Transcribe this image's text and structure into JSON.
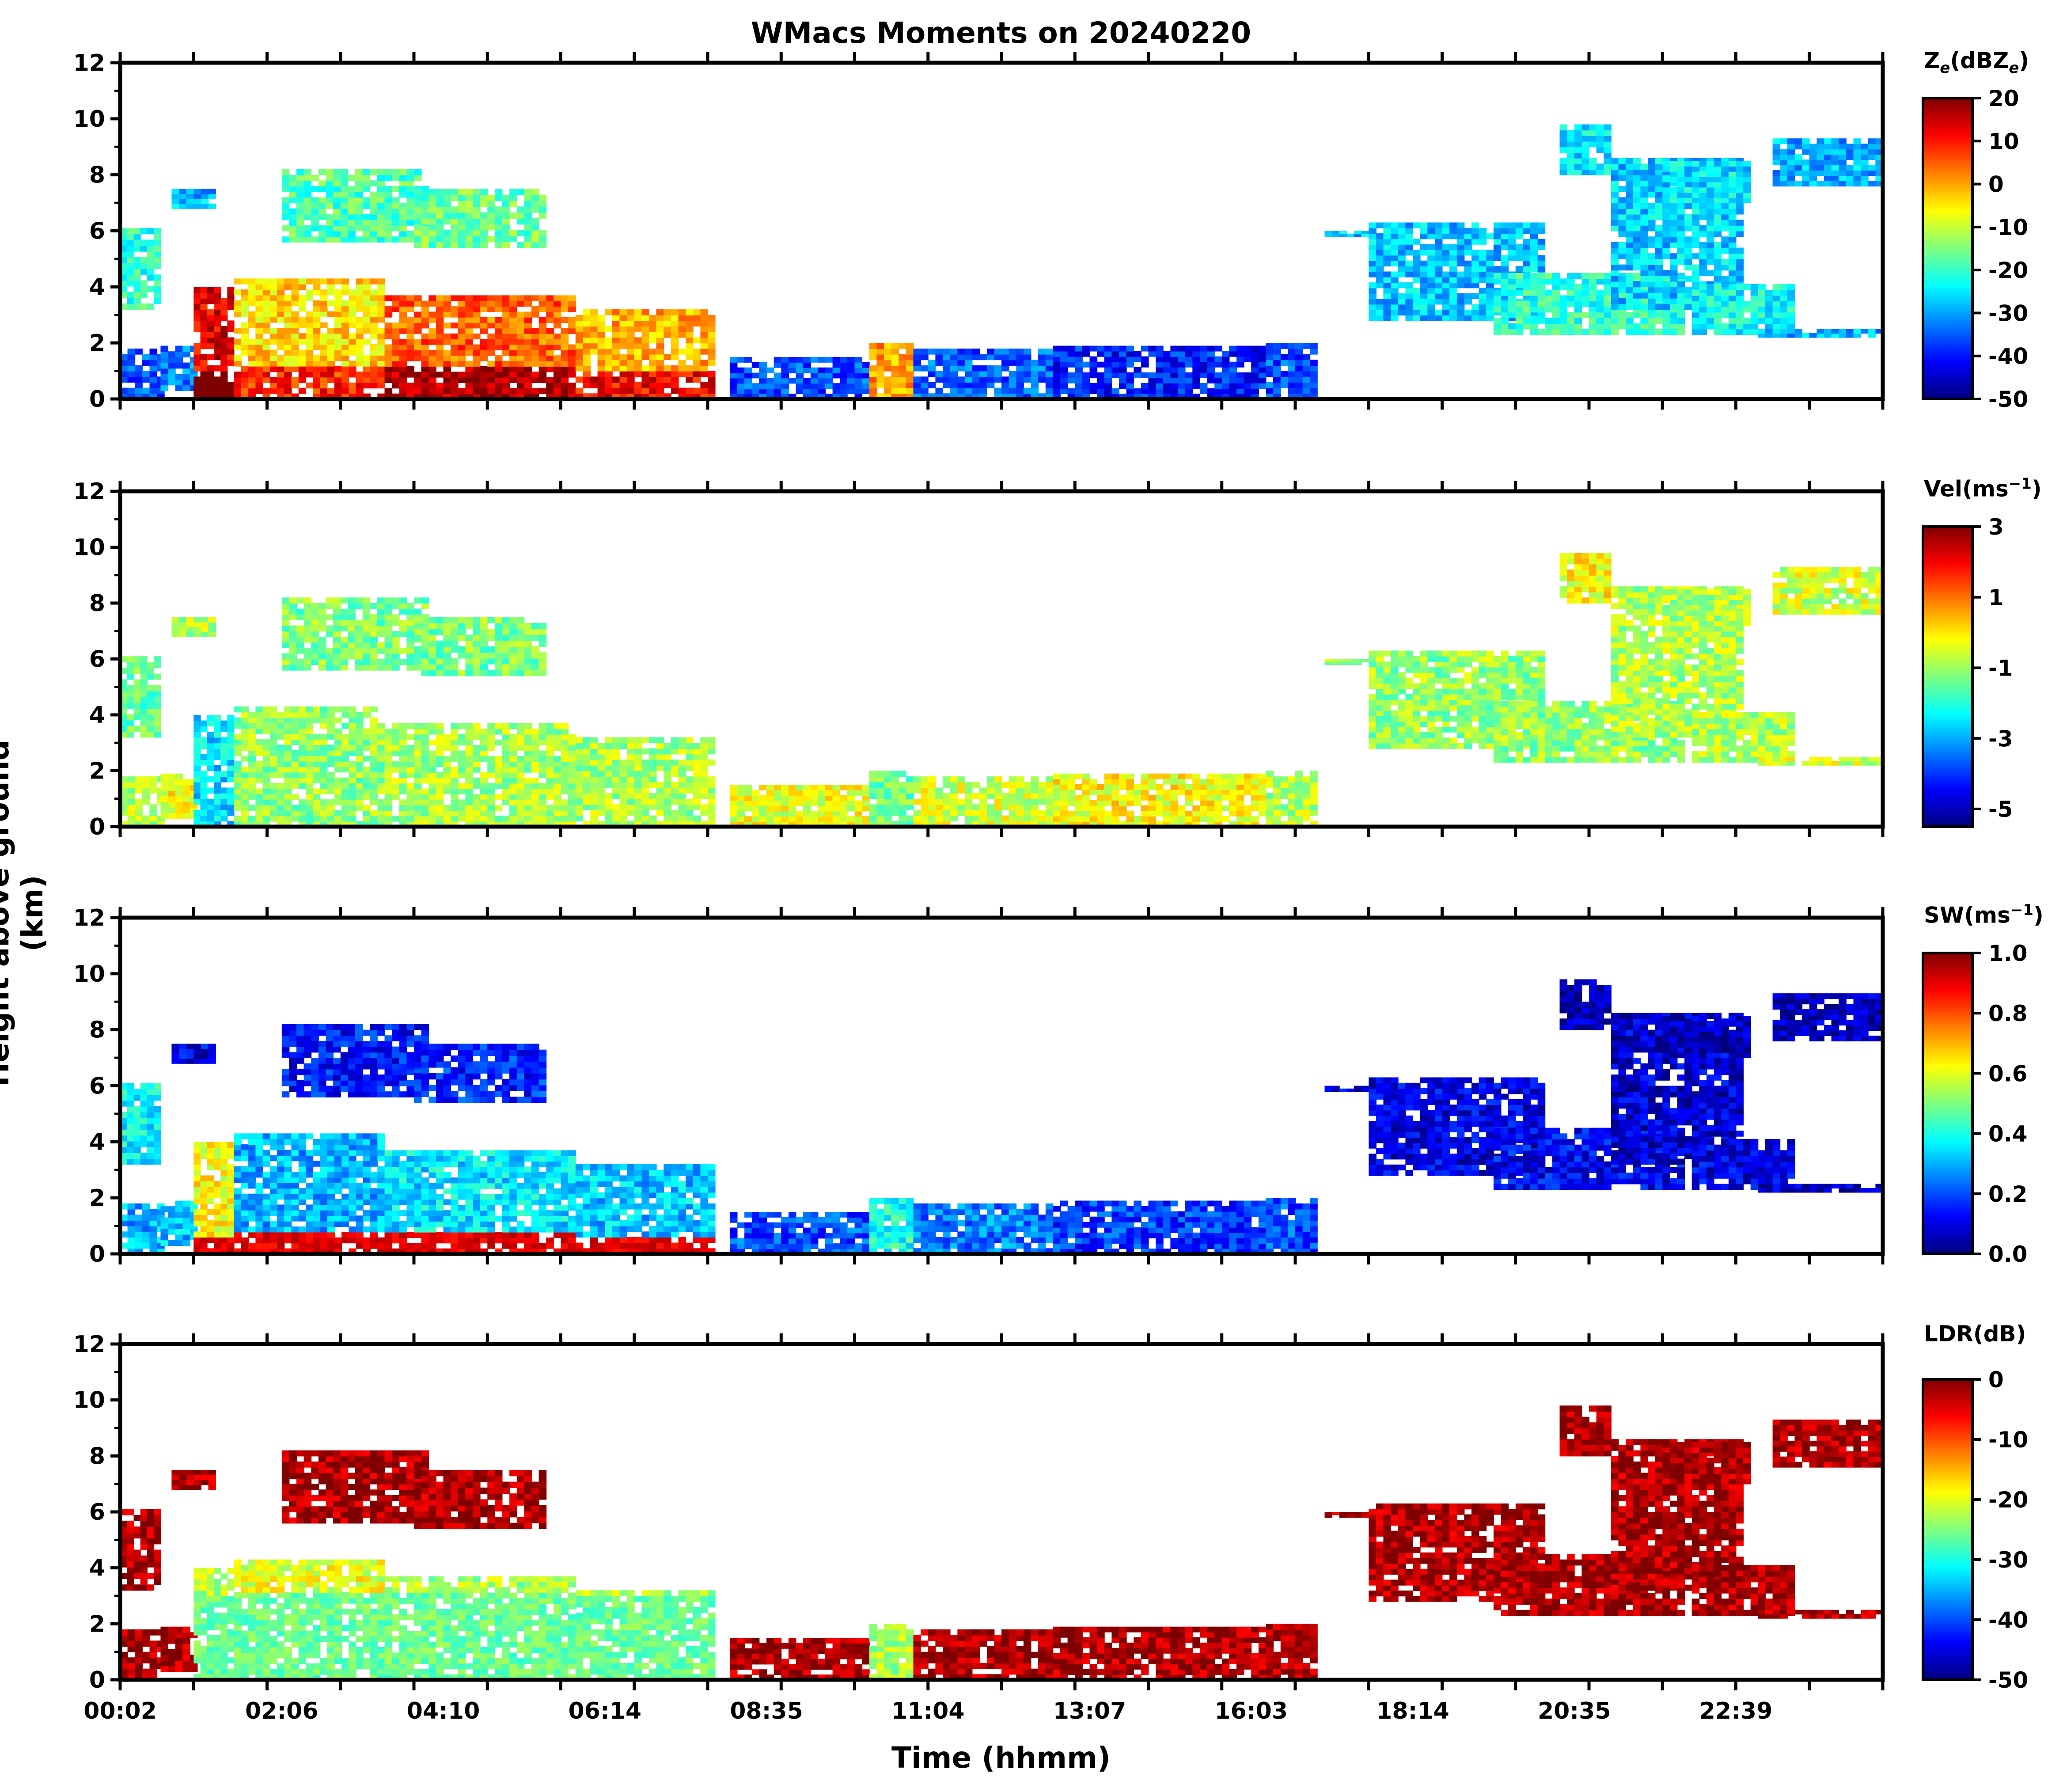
{
  "title": "WMacs Moments on 20240220",
  "xlabel": "Time (hhmm)",
  "ylabel": "Height above ground (km)",
  "colors": {
    "jet": [
      "#00007f",
      "#0000ff",
      "#007fff",
      "#00ffff",
      "#7fff7f",
      "#ffff00",
      "#ff7f00",
      "#ff0000",
      "#7f0000"
    ]
  },
  "chart_data": [
    {
      "type": "heatmap",
      "name": "reflectivity",
      "colorbar_label": "Z_e (dBZ_e)",
      "clim": [
        -50,
        20
      ],
      "colorbar_ticks": [
        "20",
        "10",
        "0",
        "-10",
        "-20",
        "-30",
        "-40",
        "-50"
      ],
      "ylim": [
        0,
        12
      ],
      "yticks": [
        "0",
        "2",
        "4",
        "6",
        "8",
        "10",
        "12"
      ],
      "xticks": [
        "00:02",
        "02:06",
        "04:10",
        "06:14",
        "08:35",
        "11:04",
        "13:07",
        "16:03",
        "18:14",
        "20:35",
        "22:39"
      ],
      "echo_layers": [
        {
          "t": [
            0.0,
            1.4
          ],
          "z": [
            0.0,
            2.0
          ],
          "value": -35
        },
        {
          "t": [
            1.4,
            8.3
          ],
          "z": [
            0.0,
            4.2
          ],
          "value": 5
        },
        {
          "t": [
            0.0,
            0.7
          ],
          "z": [
            3.2,
            6.1
          ],
          "value": -15
        },
        {
          "t": [
            2.2,
            5.8
          ],
          "z": [
            5.3,
            8.3
          ],
          "value": -18
        },
        {
          "t": [
            8.3,
            15.6
          ],
          "z": [
            0.0,
            2.0
          ],
          "value": -38
        },
        {
          "t": [
            17.1,
            21.4
          ],
          "z": [
            2.2,
            6.3
          ],
          "value": -22
        },
        {
          "t": [
            19.6,
            22.2
          ],
          "z": [
            3.0,
            9.8
          ],
          "value": -25
        },
        {
          "t": [
            22.3,
            24.0
          ],
          "z": [
            7.5,
            9.3
          ],
          "value": -28
        }
      ]
    },
    {
      "type": "heatmap",
      "name": "velocity",
      "colorbar_label": "Vel (ms^-1)",
      "clim": [
        -5.5,
        3
      ],
      "colorbar_ticks": [
        "3",
        "1",
        "-1",
        "-3",
        "-5"
      ],
      "ylim": [
        0,
        12
      ],
      "yticks": [
        "0",
        "2",
        "4",
        "6",
        "8",
        "10",
        "12"
      ],
      "xticks": [
        "00:02",
        "02:06",
        "04:10",
        "06:14",
        "08:35",
        "11:04",
        "13:07",
        "16:03",
        "18:14",
        "20:35",
        "22:39"
      ]
    },
    {
      "type": "heatmap",
      "name": "spectrum_width",
      "colorbar_label": "SW (ms^-1)",
      "clim": [
        0.0,
        1.0
      ],
      "colorbar_ticks": [
        "1.0",
        "0.8",
        "0.6",
        "0.4",
        "0.2",
        "0.0"
      ],
      "ylim": [
        0,
        12
      ],
      "yticks": [
        "0",
        "2",
        "4",
        "6",
        "8",
        "10",
        "12"
      ],
      "xticks": [
        "00:02",
        "02:06",
        "04:10",
        "06:14",
        "08:35",
        "11:04",
        "13:07",
        "16:03",
        "18:14",
        "20:35",
        "22:39"
      ]
    },
    {
      "type": "heatmap",
      "name": "ldr",
      "colorbar_label": "LDR (dB)",
      "clim": [
        -50,
        0
      ],
      "colorbar_ticks": [
        "0",
        "-10",
        "-20",
        "-30",
        "-40",
        "-50"
      ],
      "ylim": [
        0,
        12
      ],
      "yticks": [
        "0",
        "2",
        "4",
        "6",
        "8",
        "10",
        "12"
      ],
      "xticks": [
        "00:02",
        "02:06",
        "04:10",
        "06:14",
        "08:35",
        "11:04",
        "13:07",
        "16:03",
        "18:14",
        "20:35",
        "22:39"
      ]
    }
  ]
}
